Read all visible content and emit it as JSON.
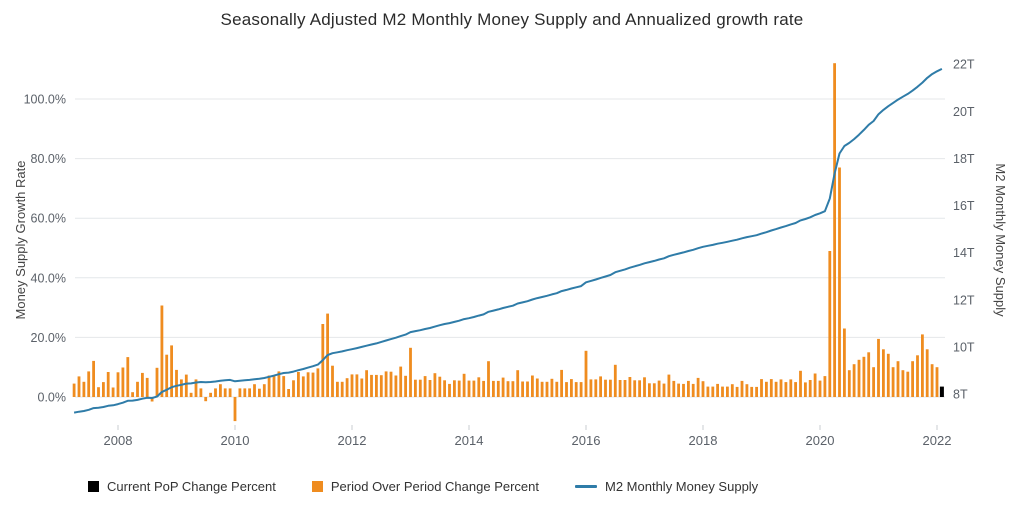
{
  "title": "Seasonally Adjusted M2 Monthly Money Supply and Annualized growth rate",
  "left_axis": {
    "title": "Money Supply Growth Rate",
    "ticks": [
      "0.0%",
      "20.0%",
      "40.0%",
      "60.0%",
      "80.0%",
      "100.0%"
    ],
    "tick_values": [
      0,
      20,
      40,
      60,
      80,
      100
    ]
  },
  "right_axis": {
    "title": "M2 Monthly Money Supply",
    "ticks": [
      "8T",
      "10T",
      "12T",
      "14T",
      "16T",
      "18T",
      "20T",
      "22T"
    ],
    "tick_values": [
      8,
      10,
      12,
      14,
      16,
      18,
      20,
      22
    ]
  },
  "x_axis": {
    "ticks": [
      "2008",
      "2010",
      "2012",
      "2014",
      "2016",
      "2018",
      "2020",
      "2022"
    ],
    "tick_values": [
      2008,
      2010,
      2012,
      2014,
      2016,
      2018,
      2020,
      2022
    ]
  },
  "legend": {
    "items": [
      {
        "label": "Current PoP Change Percent",
        "color": "#000000",
        "marker": "square"
      },
      {
        "label": "Period Over Period Change Percent",
        "color": "#ef8c1f",
        "marker": "square"
      },
      {
        "label": "M2 Monthly Money Supply",
        "color": "#2f7ca8",
        "marker": "line"
      }
    ]
  },
  "chart_data": {
    "type": "bar+line",
    "title": "Seasonally Adjusted M2 Monthly Money Supply and Annualized growth rate",
    "x_start": "2007-04",
    "x_end": "2022-02",
    "x_interval": "monthly",
    "colors": {
      "bar": "#ef8c1f",
      "current_bar": "#000000",
      "line": "#2f7ca8"
    },
    "left_ylim": [
      -10,
      115
    ],
    "right_ylim": [
      6.6,
      22.4
    ],
    "grid": true,
    "legend_position": "bottom",
    "pop_values": [
      4.5,
      6.9,
      5.1,
      8.6,
      12.1,
      3.3,
      5.0,
      8.4,
      3.2,
      8.3,
      9.9,
      13.4,
      1.6,
      5.1,
      8.1,
      6.4,
      -1.5,
      9.8,
      30.7,
      14.2,
      17.3,
      9.1,
      5.9,
      7.5,
      1.4,
      5.9,
      2.9,
      -1.4,
      1.4,
      2.9,
      4.3,
      2.9,
      2.9,
      -8.1,
      2.9,
      2.9,
      2.9,
      4.3,
      2.8,
      4.3,
      7.2,
      7.2,
      8.6,
      7.0,
      2.7,
      5.6,
      8.4,
      6.9,
      8.3,
      8.2,
      9.6,
      24.5,
      28.0,
      10.5,
      5.1,
      5.1,
      6.3,
      7.6,
      7.6,
      6.2,
      9.0,
      7.4,
      7.4,
      7.3,
      8.6,
      8.5,
      7.2,
      10.2,
      7.1,
      16.5,
      5.8,
      5.8,
      7.0,
      5.7,
      8.0,
      6.8,
      5.6,
      4.4,
      5.6,
      5.5,
      7.8,
      5.5,
      5.5,
      6.6,
      5.4,
      12.0,
      5.4,
      5.4,
      6.5,
      5.3,
      5.3,
      9.0,
      5.2,
      5.2,
      7.2,
      6.2,
      5.1,
      5.1,
      6.1,
      5.1,
      9.1,
      5.0,
      6.0,
      5.0,
      5.0,
      15.5,
      5.9,
      5.9,
      6.9,
      5.8,
      5.8,
      10.8,
      5.7,
      5.7,
      6.7,
      5.6,
      5.6,
      6.6,
      4.6,
      4.6,
      5.5,
      4.5,
      7.5,
      5.4,
      4.5,
      4.4,
      5.4,
      4.4,
      6.4,
      5.3,
      3.5,
      3.5,
      4.4,
      3.5,
      3.5,
      4.3,
      3.4,
      5.4,
      4.3,
      3.4,
      3.4,
      6.0,
      5.1,
      6.0,
      5.1,
      5.9,
      5.0,
      5.9,
      5.0,
      8.8,
      4.9,
      5.7,
      7.9,
      5.5,
      7.0,
      49.0,
      112.0,
      77.0,
      23.0,
      9.0,
      11.0,
      12.5,
      13.5,
      15.0,
      10.0,
      19.5,
      16.0,
      14.5,
      10.0,
      12.0,
      9.0,
      8.5,
      12.0,
      14.0,
      21.0,
      16.0,
      11.0,
      10.0
    ],
    "current_pop_value": 3.5,
    "m2_values": [
      7.21,
      7.25,
      7.28,
      7.33,
      7.4,
      7.42,
      7.45,
      7.5,
      7.52,
      7.57,
      7.63,
      7.71,
      7.72,
      7.75,
      7.8,
      7.84,
      7.83,
      7.89,
      8.09,
      8.18,
      8.29,
      8.35,
      8.39,
      8.44,
      8.45,
      8.49,
      8.51,
      8.5,
      8.51,
      8.53,
      8.56,
      8.58,
      8.6,
      8.54,
      8.56,
      8.58,
      8.6,
      8.63,
      8.65,
      8.68,
      8.73,
      8.78,
      8.84,
      8.89,
      8.91,
      8.95,
      9.01,
      9.06,
      9.12,
      9.18,
      9.25,
      9.44,
      9.65,
      9.73,
      9.77,
      9.81,
      9.86,
      9.9,
      9.95,
      10.0,
      10.05,
      10.1,
      10.15,
      10.21,
      10.27,
      10.33,
      10.39,
      10.46,
      10.52,
      10.63,
      10.67,
      10.71,
      10.76,
      10.8,
      10.86,
      10.92,
      10.97,
      11.01,
      11.06,
      11.11,
      11.18,
      11.22,
      11.27,
      11.33,
      11.38,
      11.49,
      11.54,
      11.59,
      11.65,
      11.7,
      11.75,
      11.84,
      11.89,
      11.94,
      12.01,
      12.07,
      12.12,
      12.17,
      12.23,
      12.28,
      12.37,
      12.42,
      12.48,
      12.53,
      12.58,
      12.74,
      12.8,
      12.86,
      12.93,
      12.99,
      13.05,
      13.17,
      13.23,
      13.29,
      13.36,
      13.42,
      13.48,
      13.55,
      13.6,
      13.65,
      13.71,
      13.76,
      13.85,
      13.91,
      13.96,
      14.01,
      14.07,
      14.12,
      14.19,
      14.25,
      14.29,
      14.33,
      14.38,
      14.42,
      14.46,
      14.51,
      14.55,
      14.61,
      14.66,
      14.7,
      14.74,
      14.81,
      14.87,
      14.94,
      15.0,
      15.07,
      15.13,
      15.2,
      15.26,
      15.37,
      15.43,
      15.5,
      15.6,
      15.67,
      15.76,
      16.3,
      17.36,
      18.21,
      18.53,
      18.66,
      18.82,
      19.01,
      19.21,
      19.43,
      19.59,
      19.88,
      20.06,
      20.22,
      20.36,
      20.5,
      20.62,
      20.74,
      20.88,
      21.04,
      21.22,
      21.42,
      21.58,
      21.7,
      21.8
    ]
  }
}
